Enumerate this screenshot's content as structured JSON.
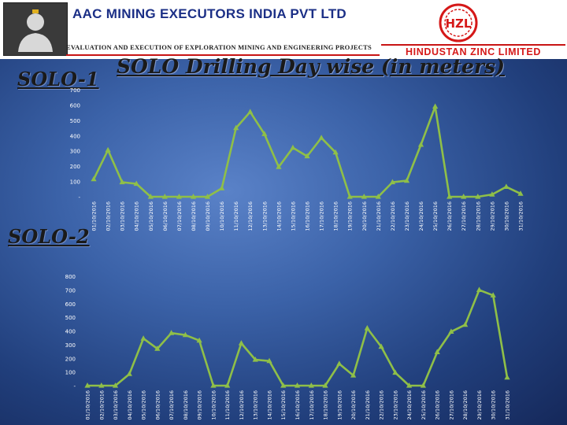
{
  "header": {
    "company": "AAC MINING EXECUTORS INDIA PVT LTD",
    "tagline": "EVALUATION AND EXECUTION OF EXPLORATION MINING AND ENGINEERING PROJECTS",
    "partner": "HINDUSTAN ZINC LIMITED",
    "partner_logo_text": "HZL"
  },
  "title": "SOLO Drilling Day wise (in meters)",
  "colors": {
    "line": "#8fbf48",
    "tick_text": "#ffffff",
    "title_text": "#1a1a1a"
  },
  "chart_data": [
    {
      "type": "line",
      "label": "SOLO-1",
      "categories": [
        "01/10/2016",
        "02/10/2016",
        "03/10/2016",
        "04/10/2016",
        "05/10/2016",
        "06/10/2016",
        "07/10/2016",
        "08/10/2016",
        "09/10/2016",
        "10/10/2016",
        "11/10/2016",
        "12/10/2016",
        "13/10/2016",
        "14/10/2016",
        "15/10/2016",
        "16/10/2016",
        "17/10/2016",
        "18/10/2016",
        "19/10/2016",
        "20/10/2016",
        "21/10/2016",
        "22/10/2016",
        "23/10/2016",
        "24/10/2016",
        "25/10/2016",
        "26/10/2016",
        "27/10/2016",
        "28/10/2016",
        "29/10/2016",
        "30/10/2016",
        "31/10/2016"
      ],
      "values": [
        115,
        305,
        95,
        85,
        0,
        0,
        0,
        0,
        0,
        55,
        450,
        555,
        410,
        195,
        320,
        265,
        385,
        290,
        0,
        0,
        0,
        95,
        105,
        340,
        590,
        0,
        0,
        0,
        15,
        65,
        20
      ],
      "y_ticks": [
        "-",
        "100",
        "200",
        "300",
        "400",
        "500",
        "600",
        "700"
      ],
      "ylim": [
        0,
        700
      ]
    },
    {
      "type": "line",
      "label": "SOLO-2",
      "categories": [
        "01/10/2016",
        "02/10/2016",
        "03/10/2016",
        "04/10/2016",
        "05/10/2016",
        "06/10/2016",
        "07/10/2016",
        "08/10/2016",
        "09/10/2016",
        "10/10/2016",
        "11/10/2016",
        "12/10/2016",
        "13/10/2016",
        "14/10/2016",
        "15/10/2016",
        "16/10/2016",
        "17/10/2016",
        "18/10/2016",
        "19/10/2016",
        "20/10/2016",
        "21/10/2016",
        "22/10/2016",
        "23/10/2016",
        "24/10/2016",
        "25/10/2016",
        "26/10/2016",
        "27/10/2016",
        "28/10/2016",
        "29/10/2016",
        "30/10/2016",
        "31/10/2016"
      ],
      "values": [
        0,
        0,
        0,
        85,
        345,
        270,
        385,
        370,
        330,
        0,
        0,
        310,
        190,
        180,
        0,
        0,
        0,
        0,
        160,
        75,
        420,
        285,
        95,
        0,
        0,
        245,
        395,
        445,
        700,
        660,
        60
      ],
      "y_ticks": [
        "-",
        "100",
        "200",
        "300",
        "400",
        "500",
        "600",
        "700",
        "800"
      ],
      "ylim": [
        0,
        800
      ]
    }
  ]
}
